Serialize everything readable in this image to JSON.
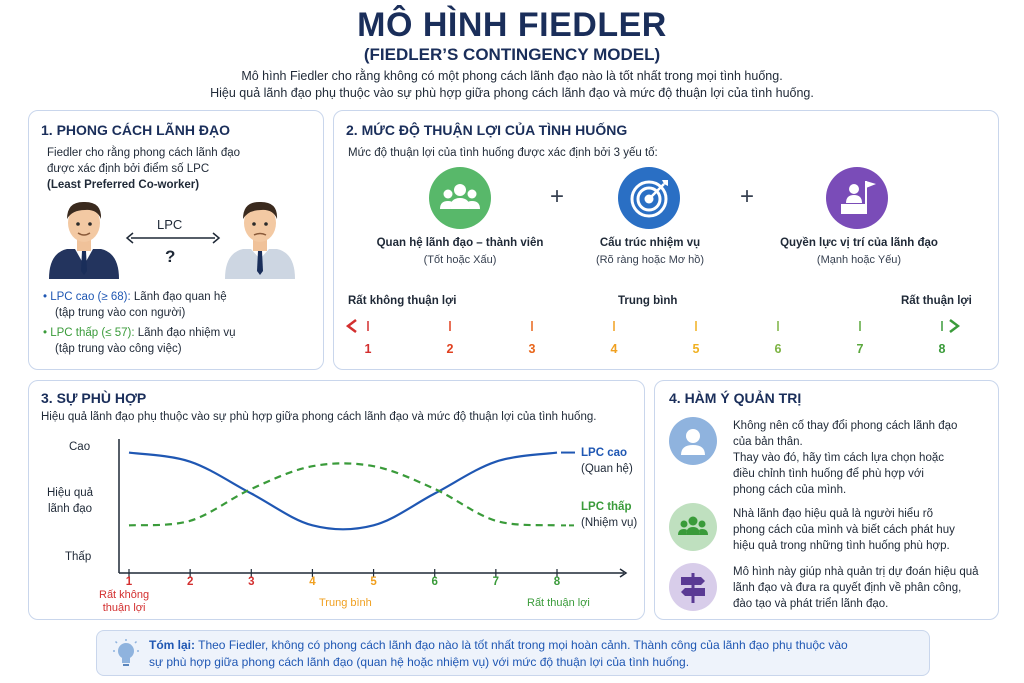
{
  "header": {
    "title": "MÔ HÌNH FIEDLER",
    "subtitle": "(FIEDLER’S CONTINGENCY MODEL)",
    "intro_line1": "Mô hình Fiedler cho rằng không có một phong cách lãnh đạo nào là tốt nhất trong mọi tình huống.",
    "intro_line2": "Hiệu quả lãnh đạo phụ thuộc vào sự phù hợp giữa phong cách lãnh đạo và mức độ thuận lợi của tình huống."
  },
  "section1": {
    "title": "1. PHONG CÁCH LÃNH ĐẠO",
    "desc_line1": "Fiedler cho rằng phong cách lãnh đạo",
    "desc_line2": "được xác định bởi điểm số LPC",
    "desc_line3": "(Least Preferred Co-worker)",
    "lpc_label": "LPC",
    "question": "?",
    "high_label": "LPC cao (≥ 68):",
    "high_text": " Lãnh đạo quan hệ",
    "high_sub": "(tập trung vào con người)",
    "low_label": "LPC thấp (≤ 57):",
    "low_text": " Lãnh đạo nhiệm vụ",
    "low_sub": "(tập trung vào công việc)"
  },
  "section2": {
    "title": "2. MỨC ĐỘ THUẬN LỢI CỦA TÌNH HUỐNG",
    "desc": "Mức độ thuận lợi của tình huống được xác định bởi 3 yếu tố:",
    "factors": [
      {
        "title": "Quan hệ lãnh đạo – thành viên",
        "sub": "(Tốt hoặc Xấu)",
        "icon": "group-icon",
        "color": "#58b86a"
      },
      {
        "title": "Cấu trúc nhiệm vụ",
        "sub": "(Rõ ràng hoặc Mơ hồ)",
        "icon": "target-icon",
        "color": "#2a6fc4"
      },
      {
        "title": "Quyền lực vị trí của lãnh đạo",
        "sub": "(Mạnh hoặc Yếu)",
        "icon": "podium-flag-icon",
        "color": "#7a4cb8"
      }
    ],
    "plus": "+",
    "scale_left": "Rất không thuận lợi",
    "scale_mid": "Trung bình",
    "scale_right": "Rất thuận lợi",
    "scale_numbers": [
      "1",
      "2",
      "3",
      "4",
      "5",
      "6",
      "7",
      "8"
    ],
    "scale_colors": [
      "#d32f2f",
      "#e0401f",
      "#e8651a",
      "#f0a020",
      "#f0b020",
      "#7cb342",
      "#5aa83c",
      "#3a9b3a"
    ]
  },
  "section3": {
    "title": "3. SỰ PHÙ HỢP",
    "desc": "Hiệu quả lãnh đạo phụ thuộc vào sự phù hợp giữa phong cách lãnh đạo và mức độ thuận lợi của tình huống.",
    "y_high": "Cao",
    "y_mid1": "Hiệu quả",
    "y_mid2": "lãnh đạo",
    "y_low": "Thấp",
    "legend_high": "LPC cao",
    "legend_high_sub": "(Quan hệ)",
    "legend_low": "LPC thấp",
    "legend_low_sub": "(Nhiệm vụ)",
    "x_left1": "Rất không",
    "x_left2": "thuận lợi",
    "x_mid": "Trung bình",
    "x_right": "Rất thuận lợi"
  },
  "chart_data": {
    "type": "line",
    "x": [
      1,
      2,
      3,
      4,
      5,
      6,
      7,
      8
    ],
    "xlabel": "",
    "ylabel": "Hiệu quả lãnh đạo",
    "ylim": [
      0,
      1
    ],
    "series": [
      {
        "name": "LPC cao",
        "style": "solid",
        "color": "#1f57b3",
        "values": [
          0.95,
          0.85,
          0.5,
          0.15,
          0.15,
          0.5,
          0.85,
          0.95
        ]
      },
      {
        "name": "LPC thấp",
        "style": "dashed",
        "color": "#3a9b3a",
        "values": [
          0.15,
          0.2,
          0.55,
          0.8,
          0.8,
          0.55,
          0.2,
          0.15
        ]
      }
    ],
    "x_tick_colors": [
      "#d32f2f",
      "#d32f2f",
      "#d32f2f",
      "#f0a020",
      "#f0a020",
      "#3a9b3a",
      "#3a9b3a",
      "#3a9b3a"
    ]
  },
  "section4": {
    "title": "4. HÀM Ý QUẢN TRỊ",
    "items": [
      {
        "icon": "person-icon",
        "color": "#8fb3de",
        "lines": [
          "Không nên cố thay đổi phong cách lãnh đạo",
          "của bản thân.",
          "Thay vào đó, hãy tìm cách lựa chọn hoặc",
          "điều chỉnh tình huống để phù hợp với",
          "phong cách của mình."
        ]
      },
      {
        "icon": "team-icon",
        "color": "#bfe0bf",
        "lines": [
          "Nhà lãnh đạo hiệu quả là người hiểu rõ",
          "phong cách của mình và biết cách phát huy",
          "hiệu quả trong những tình huống phù hợp."
        ]
      },
      {
        "icon": "signpost-icon",
        "color": "#d8cdea",
        "lines": [
          "Mô hình này giúp nhà quản trị dự đoán hiệu quả",
          "lãnh đạo và đưa ra quyết định về phân công,",
          "đào tạo và phát triển lãnh đạo."
        ]
      }
    ]
  },
  "summary": {
    "label": "Tóm lại:",
    "line1": " Theo Fiedler, không có phong cách lãnh đạo nào là tốt nhất trong mọi hoàn cảnh. Thành công của lãnh đạo phụ thuộc vào",
    "line2": "sự phù hợp giữa phong cách lãnh đạo (quan hệ hoặc nhiệm vụ) với mức độ thuận lợi của tình huống.",
    "icon": "lightbulb-icon"
  }
}
